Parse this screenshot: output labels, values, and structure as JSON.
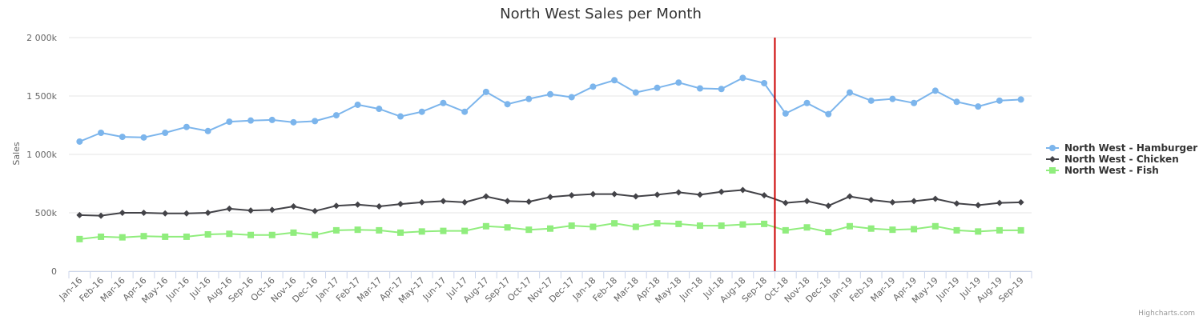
{
  "chart_data": {
    "type": "line",
    "title": "North West Sales per Month",
    "ylabel": "Sales",
    "xlabel": "",
    "ylim": [
      0,
      2000000
    ],
    "y_ticks": [
      0,
      500000,
      1000000,
      1500000,
      2000000
    ],
    "y_tick_labels": [
      "0",
      "500k",
      "1 000k",
      "1 500k",
      "2 000k"
    ],
    "grid": true,
    "legend_position": "right",
    "categories": [
      "Jan-16",
      "Feb-16",
      "Mar-16",
      "Apr-16",
      "May-16",
      "Jun-16",
      "Jul-16",
      "Aug-16",
      "Sep-16",
      "Oct-16",
      "Nov-16",
      "Dec-16",
      "Jan-17",
      "Feb-17",
      "Mar-17",
      "Apr-17",
      "May-17",
      "Jun-17",
      "Jul-17",
      "Aug-17",
      "Sep-17",
      "Oct-17",
      "Nov-17",
      "Dec-17",
      "Jan-18",
      "Feb-18",
      "Mar-18",
      "Apr-18",
      "May-18",
      "Jun-18",
      "Jul-18",
      "Aug-18",
      "Sep-18",
      "Oct-18",
      "Nov-18",
      "Dec-18",
      "Jan-19",
      "Feb-19",
      "Mar-19",
      "Apr-19",
      "May-19",
      "Jun-19",
      "Jul-19",
      "Aug-19",
      "Sep-19"
    ],
    "series": [
      {
        "name": "North West - Hamburger",
        "color": "#7cb5ec",
        "marker": "circle",
        "values": [
          1110000,
          1185000,
          1150000,
          1145000,
          1185000,
          1235000,
          1200000,
          1280000,
          1290000,
          1295000,
          1275000,
          1285000,
          1335000,
          1425000,
          1390000,
          1325000,
          1365000,
          1440000,
          1365000,
          1535000,
          1430000,
          1475000,
          1515000,
          1490000,
          1580000,
          1635000,
          1530000,
          1570000,
          1615000,
          1565000,
          1560000,
          1655000,
          1610000,
          1350000,
          1440000,
          1345000,
          1530000,
          1460000,
          1475000,
          1440000,
          1545000,
          1450000,
          1410000,
          1460000,
          1470000
        ]
      },
      {
        "name": "North West - Chicken",
        "color": "#434348",
        "marker": "diamond",
        "values": [
          480000,
          475000,
          500000,
          500000,
          495000,
          495000,
          500000,
          535000,
          520000,
          525000,
          555000,
          515000,
          560000,
          570000,
          555000,
          575000,
          590000,
          600000,
          590000,
          640000,
          600000,
          595000,
          635000,
          650000,
          660000,
          660000,
          640000,
          655000,
          675000,
          655000,
          680000,
          695000,
          650000,
          585000,
          600000,
          560000,
          640000,
          610000,
          590000,
          600000,
          620000,
          580000,
          565000,
          585000,
          590000
        ]
      },
      {
        "name": "North West - Fish",
        "color": "#90ed7d",
        "marker": "square",
        "values": [
          275000,
          295000,
          290000,
          300000,
          295000,
          295000,
          315000,
          320000,
          310000,
          310000,
          330000,
          310000,
          350000,
          355000,
          350000,
          330000,
          340000,
          345000,
          345000,
          385000,
          375000,
          355000,
          365000,
          390000,
          380000,
          410000,
          380000,
          410000,
          405000,
          390000,
          390000,
          400000,
          405000,
          350000,
          375000,
          335000,
          385000,
          365000,
          355000,
          360000,
          385000,
          350000,
          340000,
          350000,
          350000
        ]
      }
    ],
    "plot_line": {
      "category": "Oct-18",
      "color": "#cc0000"
    }
  },
  "credits": "Highcharts.com"
}
